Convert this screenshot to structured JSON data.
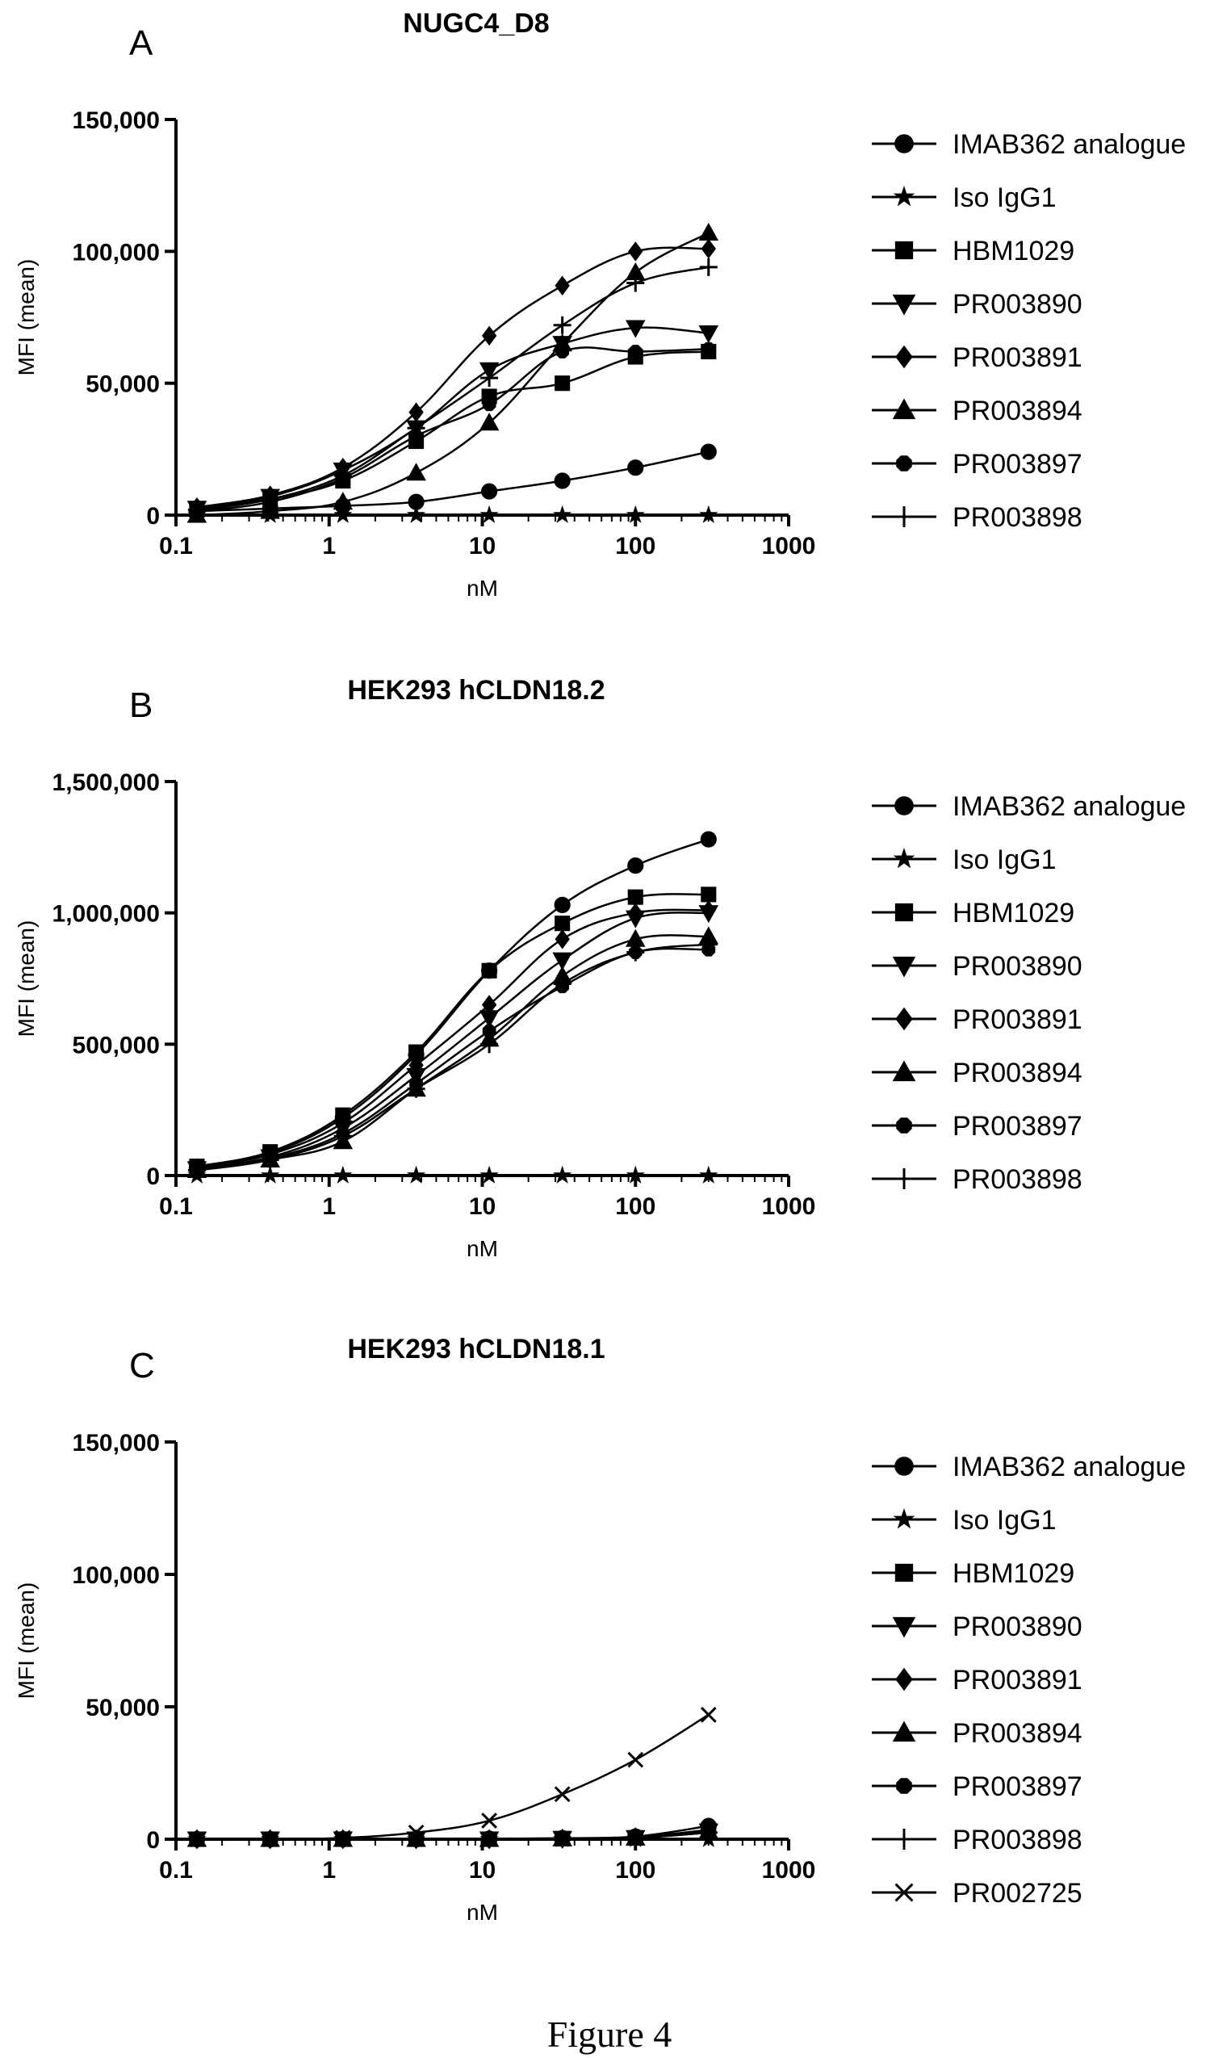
{
  "figure_caption": "Figure 4",
  "chart_data": [
    {
      "type": "line",
      "panel_label": "A",
      "title": "NUGC4_D8",
      "xlabel": "nM",
      "ylabel": "MFI (mean)",
      "x_scale": "log",
      "xlim": [
        0.1,
        1000
      ],
      "ylim": [
        0,
        150000
      ],
      "x_ticks": [
        0.1,
        1,
        10,
        100,
        1000
      ],
      "x_tick_labels": [
        "0.1",
        "1",
        "10",
        "100",
        "1000"
      ],
      "y_ticks": [
        0,
        50000,
        100000,
        150000
      ],
      "y_tick_labels": [
        "0",
        "50,000",
        "100,000",
        "150,000"
      ],
      "legend_position": "right",
      "x": [
        0.137,
        0.412,
        1.23,
        3.7,
        11.1,
        33.3,
        100,
        300
      ],
      "series": [
        {
          "name": "IMAB362 analogue",
          "marker": "circle",
          "values": [
            1500,
            2500,
            3500,
            5000,
            9000,
            13000,
            18000,
            24000
          ]
        },
        {
          "name": "Iso IgG1",
          "marker": "star",
          "values": [
            0,
            0,
            0,
            0,
            0,
            0,
            0,
            0
          ]
        },
        {
          "name": "HBM1029",
          "marker": "square",
          "values": [
            2000,
            6000,
            13000,
            28000,
            45000,
            50000,
            60000,
            62000
          ]
        },
        {
          "name": "PR003890",
          "marker": "triangle-down",
          "values": [
            2500,
            7000,
            17000,
            33000,
            55000,
            65000,
            71000,
            69000
          ]
        },
        {
          "name": "PR003891",
          "marker": "diamond",
          "values": [
            3000,
            7500,
            18000,
            39000,
            68000,
            87000,
            100000,
            101000
          ]
        },
        {
          "name": "PR003894",
          "marker": "triangle-up",
          "values": [
            0,
            1500,
            5000,
            16000,
            35000,
            65000,
            92000,
            107000
          ]
        },
        {
          "name": "PR003897",
          "marker": "octagon",
          "values": [
            1500,
            5000,
            14000,
            30000,
            42000,
            62000,
            62000,
            63000
          ]
        },
        {
          "name": "PR003898",
          "marker": "plus",
          "values": [
            2000,
            6000,
            15000,
            33000,
            52000,
            72000,
            88000,
            94000
          ]
        }
      ]
    },
    {
      "type": "line",
      "panel_label": "B",
      "title": "HEK293 hCLDN18.2",
      "xlabel": "nM",
      "ylabel": "MFI (mean)",
      "x_scale": "log",
      "xlim": [
        0.1,
        1000
      ],
      "ylim": [
        0,
        1500000
      ],
      "x_ticks": [
        0.1,
        1,
        10,
        100,
        1000
      ],
      "x_tick_labels": [
        "0.1",
        "1",
        "10",
        "100",
        "1000"
      ],
      "y_ticks": [
        0,
        500000,
        1000000,
        1500000
      ],
      "y_tick_labels": [
        "0",
        "500,000",
        "1,000,000",
        "1,500,000"
      ],
      "legend_position": "right",
      "x": [
        0.137,
        0.412,
        1.23,
        3.7,
        11.1,
        33.3,
        100,
        300
      ],
      "series": [
        {
          "name": "IMAB362 analogue",
          "marker": "circle",
          "values": [
            30000,
            85000,
            220000,
            460000,
            780000,
            1030000,
            1180000,
            1280000
          ]
        },
        {
          "name": "Iso IgG1",
          "marker": "star",
          "values": [
            0,
            0,
            0,
            0,
            0,
            0,
            0,
            0
          ]
        },
        {
          "name": "HBM1029",
          "marker": "square",
          "values": [
            35000,
            90000,
            230000,
            470000,
            780000,
            960000,
            1060000,
            1070000
          ]
        },
        {
          "name": "PR003890",
          "marker": "triangle-down",
          "values": [
            25000,
            70000,
            180000,
            380000,
            600000,
            820000,
            980000,
            1000000
          ]
        },
        {
          "name": "PR003891",
          "marker": "diamond",
          "values": [
            28000,
            80000,
            200000,
            420000,
            650000,
            900000,
            1000000,
            1010000
          ]
        },
        {
          "name": "PR003894",
          "marker": "triangle-up",
          "values": [
            20000,
            60000,
            130000,
            330000,
            520000,
            760000,
            900000,
            910000
          ]
        },
        {
          "name": "PR003897",
          "marker": "octagon",
          "values": [
            22000,
            65000,
            160000,
            350000,
            550000,
            720000,
            850000,
            860000
          ]
        },
        {
          "name": "PR003898",
          "marker": "plus",
          "values": [
            20000,
            60000,
            150000,
            330000,
            500000,
            730000,
            850000,
            880000
          ]
        }
      ]
    },
    {
      "type": "line",
      "panel_label": "C",
      "title": "HEK293 hCLDN18.1",
      "xlabel": "nM",
      "ylabel": "MFI (mean)",
      "x_scale": "log",
      "xlim": [
        0.1,
        1000
      ],
      "ylim": [
        0,
        150000
      ],
      "x_ticks": [
        0.1,
        1,
        10,
        100,
        1000
      ],
      "x_tick_labels": [
        "0.1",
        "1",
        "10",
        "100",
        "1000"
      ],
      "y_ticks": [
        0,
        50000,
        100000,
        150000
      ],
      "y_tick_labels": [
        "0",
        "50,000",
        "100,000",
        "150,000"
      ],
      "legend_position": "right",
      "x": [
        0.137,
        0.412,
        1.23,
        3.7,
        11.1,
        33.3,
        100,
        300
      ],
      "series": [
        {
          "name": "IMAB362 analogue",
          "marker": "circle",
          "values": [
            0,
            0,
            0,
            0,
            200,
            400,
            1000,
            5000
          ]
        },
        {
          "name": "Iso IgG1",
          "marker": "star",
          "values": [
            0,
            0,
            0,
            0,
            0,
            0,
            0,
            0
          ]
        },
        {
          "name": "HBM1029",
          "marker": "square",
          "values": [
            0,
            0,
            0,
            0,
            0,
            200,
            500,
            3500
          ]
        },
        {
          "name": "PR003890",
          "marker": "triangle-down",
          "values": [
            0,
            0,
            0,
            0,
            0,
            200,
            500,
            3000
          ]
        },
        {
          "name": "PR003891",
          "marker": "diamond",
          "values": [
            0,
            0,
            0,
            0,
            0,
            200,
            800,
            3500
          ]
        },
        {
          "name": "PR003894",
          "marker": "triangle-up",
          "values": [
            0,
            0,
            0,
            0,
            0,
            200,
            500,
            3000
          ]
        },
        {
          "name": "PR003897",
          "marker": "octagon",
          "values": [
            0,
            0,
            0,
            0,
            0,
            200,
            500,
            2500
          ]
        },
        {
          "name": "PR003898",
          "marker": "plus",
          "values": [
            0,
            0,
            0,
            0,
            0,
            200,
            500,
            2500
          ]
        },
        {
          "name": "PR002725",
          "marker": "cross",
          "values": [
            0,
            0,
            500,
            2500,
            7000,
            17000,
            30000,
            47000
          ]
        }
      ]
    }
  ]
}
